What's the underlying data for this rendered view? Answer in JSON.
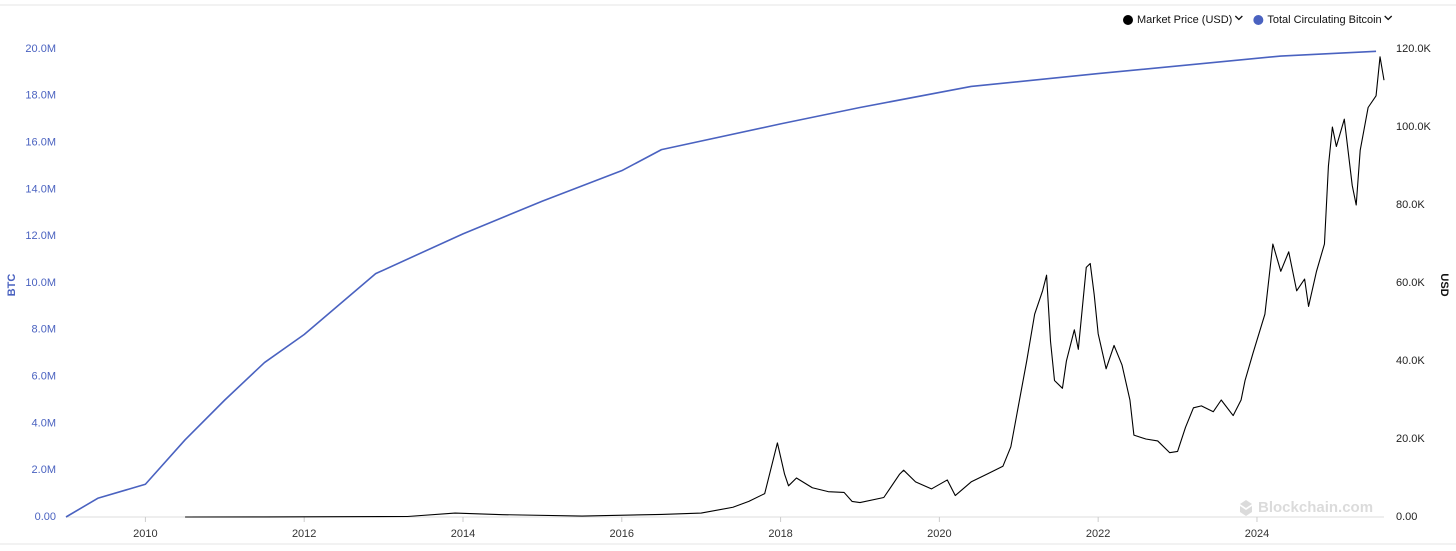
{
  "chart_data": {
    "type": "line",
    "ylabel": "BTC",
    "y2label": "USD",
    "watermark": "Blockchain.com",
    "xlim": [
      2009.0,
      2025.6
    ],
    "xticks": [
      2010,
      2012,
      2014,
      2016,
      2018,
      2020,
      2022,
      2024
    ],
    "ylim": [
      0,
      20000000
    ],
    "yticks": [
      {
        "value": 0,
        "label": "0.00"
      },
      {
        "value": 2000000,
        "label": "2.0M"
      },
      {
        "value": 4000000,
        "label": "4.0M"
      },
      {
        "value": 6000000,
        "label": "6.0M"
      },
      {
        "value": 8000000,
        "label": "8.0M"
      },
      {
        "value": 10000000,
        "label": "10.0M"
      },
      {
        "value": 12000000,
        "label": "12.0M"
      },
      {
        "value": 14000000,
        "label": "14.0M"
      },
      {
        "value": 16000000,
        "label": "16.0M"
      },
      {
        "value": 18000000,
        "label": "18.0M"
      },
      {
        "value": 20000000,
        "label": "20.0M"
      }
    ],
    "y2lim": [
      0,
      120000
    ],
    "y2ticks": [
      {
        "value": 0,
        "label": "0.00"
      },
      {
        "value": 20000,
        "label": "20.0K"
      },
      {
        "value": 40000,
        "label": "40.0K"
      },
      {
        "value": 60000,
        "label": "60.0K"
      },
      {
        "value": 80000,
        "label": "80.0K"
      },
      {
        "value": 100000,
        "label": "100.0K"
      },
      {
        "value": 120000,
        "label": "120.0K"
      }
    ],
    "series": [
      {
        "name": "Market Price (USD)",
        "color": "#000000",
        "axis": "y2",
        "x": [
          2010.5,
          2011.5,
          2013.3,
          2013.9,
          2014.5,
          2015.5,
          2016.5,
          2017.0,
          2017.4,
          2017.6,
          2017.8,
          2017.96,
          2018.05,
          2018.1,
          2018.2,
          2018.4,
          2018.6,
          2018.8,
          2018.9,
          2019.0,
          2019.3,
          2019.5,
          2019.55,
          2019.7,
          2019.9,
          2020.1,
          2020.2,
          2020.4,
          2020.6,
          2020.8,
          2020.9,
          2021.0,
          2021.1,
          2021.2,
          2021.3,
          2021.35,
          2021.4,
          2021.45,
          2021.55,
          2021.6,
          2021.7,
          2021.75,
          2021.85,
          2021.9,
          2021.95,
          2022.0,
          2022.1,
          2022.2,
          2022.3,
          2022.4,
          2022.45,
          2022.6,
          2022.75,
          2022.9,
          2023.0,
          2023.1,
          2023.2,
          2023.3,
          2023.45,
          2023.55,
          2023.7,
          2023.8,
          2023.85,
          2023.95,
          2024.1,
          2024.2,
          2024.3,
          2024.4,
          2024.5,
          2024.6,
          2024.65,
          2024.75,
          2024.85,
          2024.9,
          2024.95,
          2025.0,
          2025.1,
          2025.2,
          2025.25,
          2025.3,
          2025.4,
          2025.5,
          2025.55,
          2025.6
        ],
        "values": [
          0,
          15,
          130,
          1000,
          600,
          250,
          650,
          1000,
          2500,
          4000,
          6000,
          19000,
          11000,
          8000,
          10000,
          7500,
          6500,
          6300,
          4000,
          3700,
          5000,
          11000,
          12000,
          9000,
          7200,
          9500,
          5500,
          9000,
          11000,
          13000,
          18000,
          29000,
          40000,
          52000,
          58000,
          62000,
          45000,
          35000,
          33000,
          40000,
          48000,
          43000,
          64000,
          65000,
          57000,
          47000,
          38000,
          44000,
          39000,
          30000,
          21000,
          20000,
          19500,
          16500,
          16800,
          23000,
          28000,
          28500,
          27000,
          30000,
          26000,
          30000,
          35000,
          42000,
          52000,
          70000,
          63000,
          68000,
          58000,
          61000,
          54000,
          63000,
          70000,
          90000,
          100000,
          95000,
          102000,
          85000,
          80000,
          94000,
          105000,
          108000,
          118000,
          112000
        ]
      },
      {
        "name": "Total Circulating Bitcoin",
        "color": "#4a62c0",
        "x": [
          2009.0,
          2009.4,
          2010.0,
          2010.5,
          2011.0,
          2011.5,
          2012.0,
          2012.9,
          2014.0,
          2015.0,
          2016.0,
          2016.5,
          2018.0,
          2019.0,
          2020.4,
          2022.0,
          2024.3,
          2025.5
        ],
        "values": [
          0,
          800000,
          1400000,
          3300000,
          5000000,
          6600000,
          7800000,
          10400000,
          12100000,
          13500000,
          14800000,
          15700000,
          16800000,
          17500000,
          18400000,
          18950000,
          19700000,
          19900000
        ]
      }
    ]
  }
}
